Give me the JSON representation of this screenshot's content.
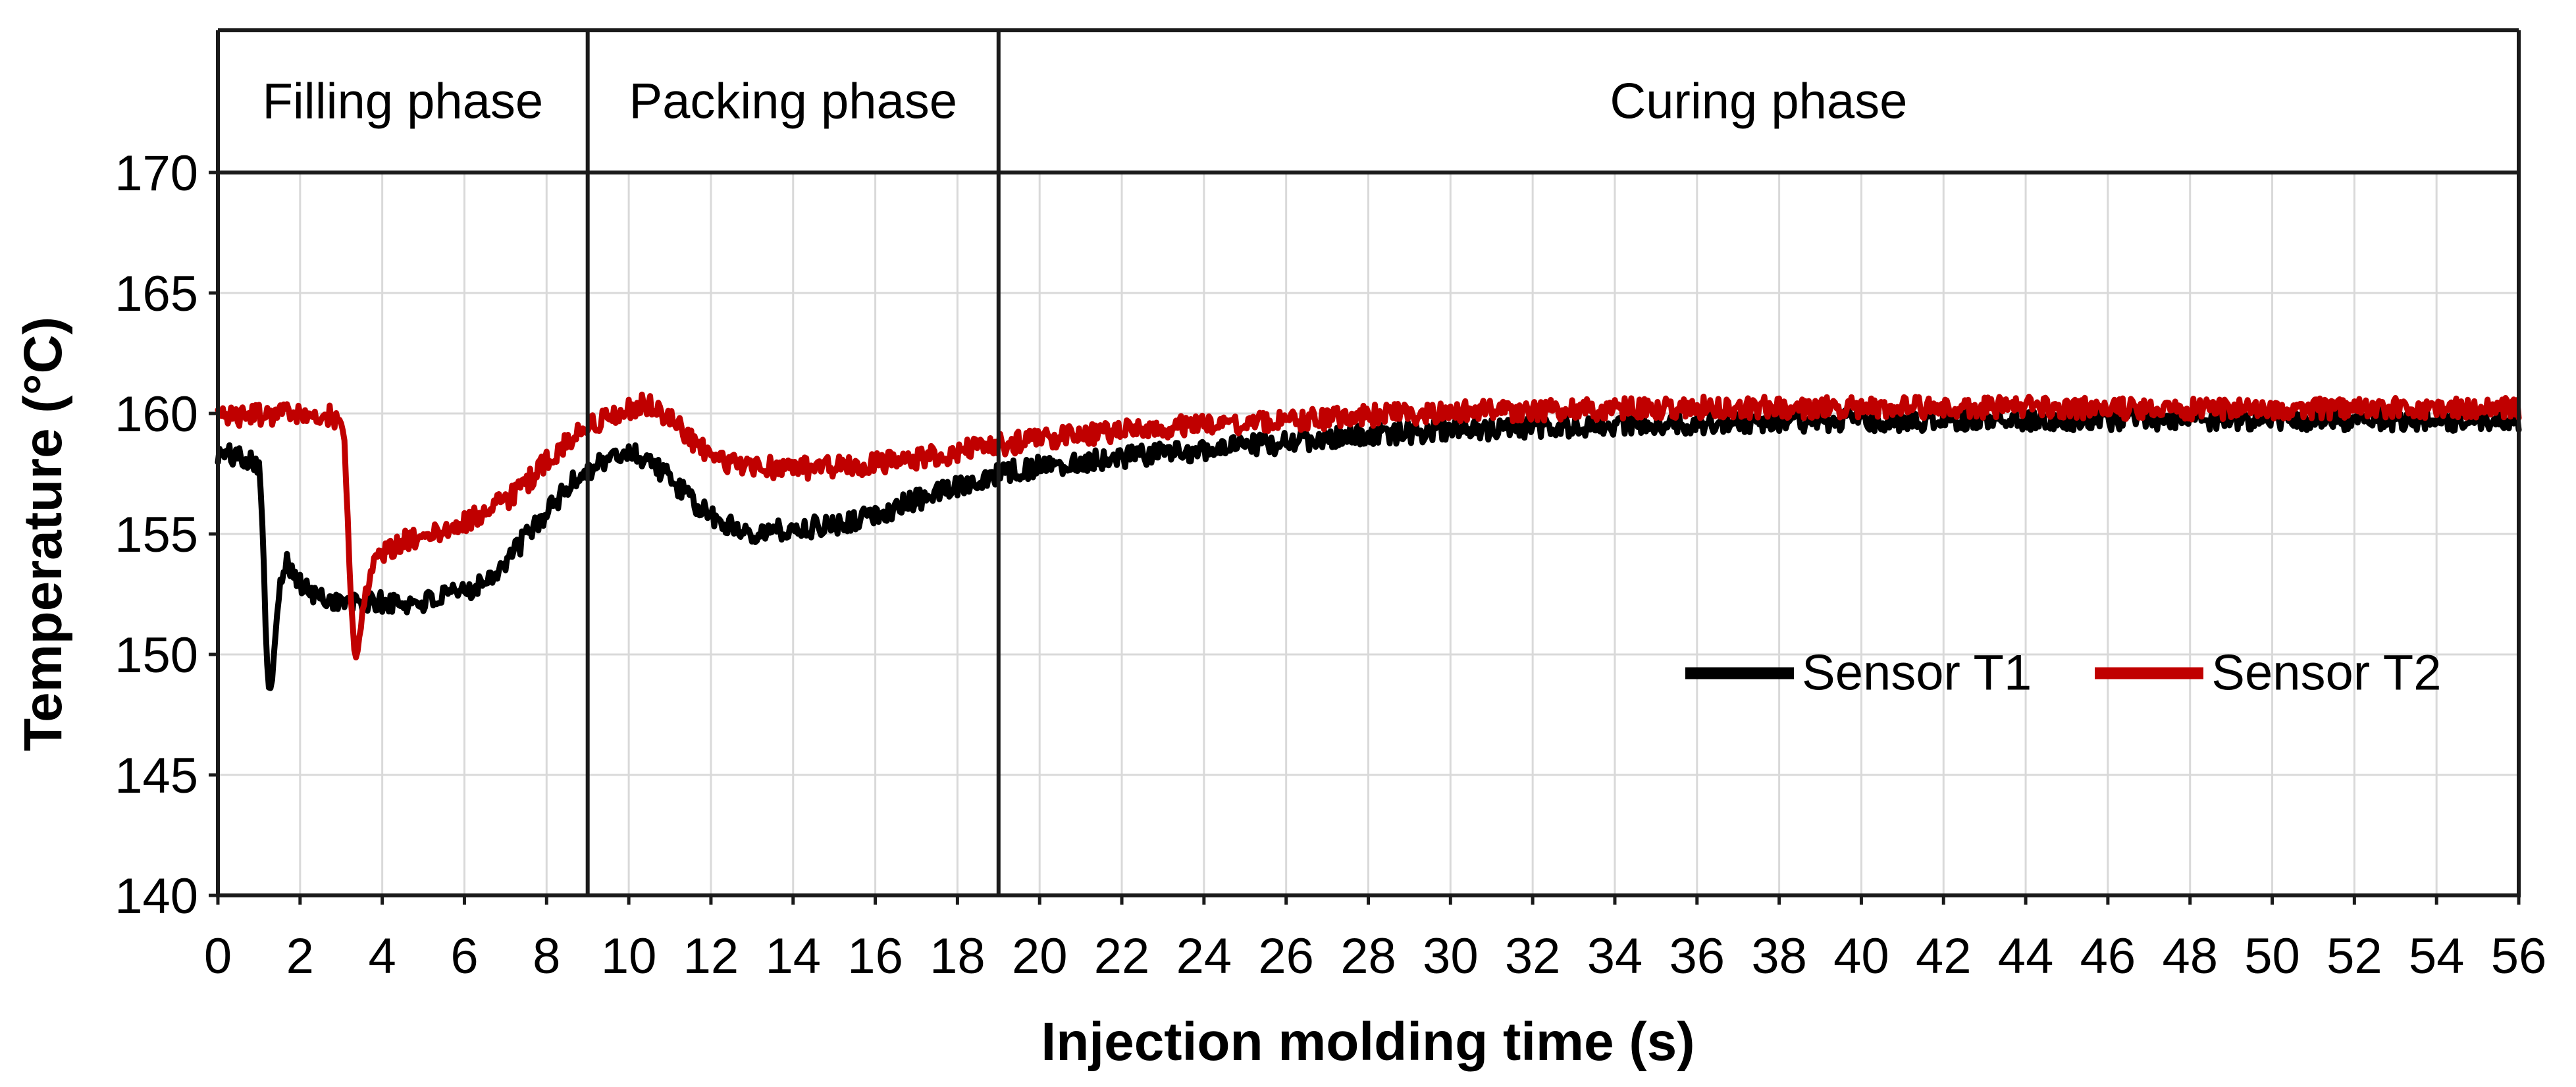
{
  "figure": {
    "y_axis_title": "Temperature (°C)",
    "x_axis_title": "Injection molding time (s)",
    "phases": [
      {
        "label": "Filling phase",
        "start_s": 0,
        "end_s": 9
      },
      {
        "label": "Packing phase",
        "start_s": 9,
        "end_s": 19
      },
      {
        "label": "Curing phase",
        "start_s": 19,
        "end_s": 56
      }
    ],
    "legend": [
      {
        "label": "Sensor T1",
        "color": "#000000"
      },
      {
        "label": "Sensor T2",
        "color": "#C00000"
      }
    ]
  },
  "chart_data": {
    "type": "line",
    "title": "",
    "xlabel": "Injection molding time (s)",
    "ylabel": "Temperature (°C)",
    "xlim": [
      0,
      56
    ],
    "ylim": [
      140,
      170
    ],
    "x_ticks": [
      0,
      2,
      4,
      6,
      8,
      10,
      12,
      14,
      16,
      18,
      20,
      22,
      24,
      26,
      28,
      30,
      32,
      34,
      36,
      38,
      40,
      42,
      44,
      46,
      48,
      50,
      52,
      54,
      56
    ],
    "y_ticks": [
      140,
      145,
      150,
      155,
      160,
      165,
      170
    ],
    "grid": true,
    "legend_position": "inside-lower-right",
    "colors": {
      "grid": "#D9D9D9",
      "frame": "#1a1a1a",
      "background": "#ffffff",
      "sensor_t1": "#000000",
      "sensor_t2": "#C00000"
    },
    "phase_dividers_s": [
      9,
      19
    ],
    "noise_amplitude_c": 0.45,
    "sample_interval_s": 0.04,
    "series": [
      {
        "name": "Sensor T1",
        "color": "#000000",
        "anchors": [
          [
            0,
            158.3
          ],
          [
            0.4,
            158.25
          ],
          [
            0.8,
            158.15
          ],
          [
            1.0,
            157.9
          ],
          [
            1.06,
            156.5
          ],
          [
            1.12,
            153.5
          ],
          [
            1.18,
            150.0
          ],
          [
            1.24,
            148.5
          ],
          [
            1.3,
            148.6
          ],
          [
            1.38,
            150.5
          ],
          [
            1.5,
            152.8
          ],
          [
            1.62,
            153.9
          ],
          [
            1.75,
            153.6
          ],
          [
            1.95,
            153.0
          ],
          [
            2.2,
            152.6
          ],
          [
            2.5,
            152.35
          ],
          [
            3.0,
            152.2
          ],
          [
            3.5,
            152.1
          ],
          [
            4.0,
            152.15
          ],
          [
            4.5,
            152.1
          ],
          [
            5.0,
            152.2
          ],
          [
            5.5,
            152.35
          ],
          [
            6.0,
            152.6
          ],
          [
            6.5,
            153.1
          ],
          [
            7.0,
            153.8
          ],
          [
            7.5,
            154.9
          ],
          [
            8.0,
            155.9
          ],
          [
            8.5,
            156.9
          ],
          [
            9.0,
            157.7
          ],
          [
            9.5,
            158.1
          ],
          [
            10.0,
            158.4
          ],
          [
            10.5,
            158.1
          ],
          [
            11.0,
            157.3
          ],
          [
            11.5,
            156.4
          ],
          [
            12.0,
            155.7
          ],
          [
            12.5,
            155.3
          ],
          [
            13.0,
            155.1
          ],
          [
            13.5,
            155.1
          ],
          [
            14.0,
            155.2
          ],
          [
            14.5,
            155.3
          ],
          [
            15.0,
            155.4
          ],
          [
            15.5,
            155.6
          ],
          [
            16.0,
            155.8
          ],
          [
            16.5,
            156.1
          ],
          [
            17.0,
            156.4
          ],
          [
            17.5,
            156.7
          ],
          [
            18.0,
            157.0
          ],
          [
            18.5,
            157.3
          ],
          [
            19.0,
            157.5
          ],
          [
            20,
            157.8
          ],
          [
            21,
            158.0
          ],
          [
            22,
            158.2
          ],
          [
            23,
            158.35
          ],
          [
            24,
            158.5
          ],
          [
            25,
            158.65
          ],
          [
            26,
            158.8
          ],
          [
            27,
            158.95
          ],
          [
            28,
            159.1
          ],
          [
            29,
            159.2
          ],
          [
            30,
            159.3
          ],
          [
            32,
            159.4
          ],
          [
            34,
            159.5
          ],
          [
            36,
            159.6
          ],
          [
            38,
            159.65
          ],
          [
            40,
            159.7
          ],
          [
            44,
            159.75
          ],
          [
            48,
            159.75
          ],
          [
            52,
            159.75
          ],
          [
            56,
            159.7
          ]
        ]
      },
      {
        "name": "Sensor T2",
        "color": "#C00000",
        "anchors": [
          [
            0,
            159.9
          ],
          [
            0.6,
            159.9
          ],
          [
            1.2,
            159.95
          ],
          [
            1.8,
            160.0
          ],
          [
            2.4,
            159.95
          ],
          [
            2.8,
            159.9
          ],
          [
            3.0,
            159.7
          ],
          [
            3.08,
            158.8
          ],
          [
            3.15,
            156.0
          ],
          [
            3.22,
            153.0
          ],
          [
            3.3,
            150.5
          ],
          [
            3.37,
            149.7
          ],
          [
            3.44,
            150.6
          ],
          [
            3.55,
            152.2
          ],
          [
            3.7,
            153.3
          ],
          [
            3.85,
            153.9
          ],
          [
            4.0,
            154.2
          ],
          [
            4.3,
            154.5
          ],
          [
            4.7,
            154.8
          ],
          [
            5.0,
            155.0
          ],
          [
            5.5,
            155.2
          ],
          [
            6.0,
            155.5
          ],
          [
            6.5,
            155.9
          ],
          [
            7.0,
            156.4
          ],
          [
            7.5,
            157.1
          ],
          [
            8.0,
            158.0
          ],
          [
            8.5,
            158.9
          ],
          [
            9.0,
            159.5
          ],
          [
            9.5,
            159.9
          ],
          [
            10.0,
            160.2
          ],
          [
            10.3,
            160.4
          ],
          [
            10.7,
            160.2
          ],
          [
            11.0,
            159.8
          ],
          [
            11.4,
            159.1
          ],
          [
            11.8,
            158.5
          ],
          [
            12.2,
            158.1
          ],
          [
            12.6,
            157.9
          ],
          [
            13.0,
            157.8
          ],
          [
            13.5,
            157.75
          ],
          [
            14.0,
            157.7
          ],
          [
            14.5,
            157.75
          ],
          [
            15.0,
            157.8
          ],
          [
            15.5,
            157.85
          ],
          [
            16.0,
            157.9
          ],
          [
            16.5,
            158.0
          ],
          [
            17.0,
            158.1
          ],
          [
            17.5,
            158.25
          ],
          [
            18.0,
            158.4
          ],
          [
            18.5,
            158.55
          ],
          [
            19.0,
            158.7
          ],
          [
            20,
            158.9
          ],
          [
            21,
            159.1
          ],
          [
            22,
            159.25
          ],
          [
            23,
            159.4
          ],
          [
            24,
            159.5
          ],
          [
            25,
            159.6
          ],
          [
            26,
            159.7
          ],
          [
            27,
            159.8
          ],
          [
            28,
            159.9
          ],
          [
            29,
            160.0
          ],
          [
            30,
            160.05
          ],
          [
            31,
            160.1
          ],
          [
            32,
            160.15
          ],
          [
            34,
            160.2
          ],
          [
            36,
            160.25
          ],
          [
            40,
            160.25
          ],
          [
            44,
            160.25
          ],
          [
            48,
            160.2
          ],
          [
            52,
            160.2
          ],
          [
            56,
            160.2
          ]
        ]
      }
    ]
  }
}
